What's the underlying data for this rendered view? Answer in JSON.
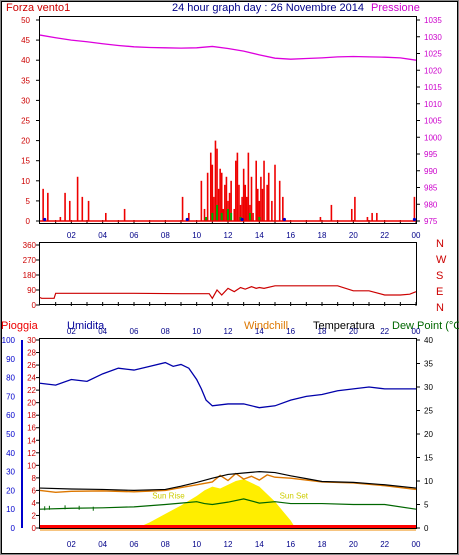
{
  "header": {
    "left_label": "Forza vento1",
    "title": "24 hour graph day : 26 Novembre 2014",
    "right_label": "Pressione"
  },
  "colors": {
    "wind": "#ee0000",
    "pressure": "#dd00dd",
    "time_labels": "#000088",
    "direction": "#cc0000",
    "rain": "#ff0000",
    "humidity": "#0000aa",
    "windchill": "#dd7700",
    "temperature": "#000000",
    "dewpoint": "#006600",
    "solar": "#ffee00",
    "sun_label": "#cccc00"
  },
  "chart_data": [
    {
      "name": "wind-pressure",
      "type": "line",
      "x_ticks": [
        "02",
        "04",
        "06",
        "08",
        "10",
        "12",
        "14",
        "16",
        "18",
        "20",
        "22",
        "00"
      ],
      "left_axis": {
        "label": "Forza vento1",
        "ticks": [
          "0",
          "5",
          "10",
          "15",
          "20",
          "25",
          "30",
          "35",
          "40",
          "45",
          "50"
        ],
        "ylim": [
          0,
          50
        ]
      },
      "right_axis": {
        "label": "Pressione",
        "ticks": [
          "975",
          "980",
          "985",
          "990",
          "995",
          "1000",
          "1005",
          "1010",
          "1015",
          "1020",
          "1025",
          "1030",
          "1035"
        ],
        "ylim": [
          975,
          1035
        ]
      },
      "pressure": {
        "hours": [
          0,
          1,
          2,
          3,
          4,
          5,
          6,
          7,
          8,
          9,
          10,
          11,
          12,
          13,
          14,
          15,
          16,
          17,
          18,
          19,
          20,
          21,
          22,
          23,
          24
        ],
        "values": [
          1030.5,
          1029.7,
          1029,
          1028.5,
          1027.9,
          1027.4,
          1027,
          1026.8,
          1026.7,
          1026.6,
          1026.7,
          1027.1,
          1026.5,
          1025.7,
          1024.6,
          1023.6,
          1023.3,
          1023.5,
          1023.7,
          1024,
          1024.1,
          1024,
          1023.9,
          1023.7,
          1023
        ]
      },
      "wind_gust_bars": {
        "hours": [
          0.2,
          0.5,
          1.3,
          1.6,
          1.9,
          2.4,
          2.7,
          3.1,
          4.2,
          5.4,
          9.1,
          9.5,
          10.3,
          10.5,
          10.7,
          10.9,
          11.0,
          11.1,
          11.2,
          11.3,
          11.4,
          11.5,
          11.6,
          11.7,
          11.8,
          11.9,
          12.0,
          12.1,
          12.2,
          12.4,
          12.5,
          12.6,
          12.7,
          12.8,
          12.9,
          13.0,
          13.1,
          13.2,
          13.3,
          13.4,
          13.5,
          13.6,
          13.8,
          13.9,
          14.0,
          14.1,
          14.2,
          14.3,
          14.5,
          14.6,
          14.8,
          15.0,
          15.3,
          15.5,
          17.9,
          18.6,
          19.9,
          20.1,
          20.9,
          21.2,
          21.5,
          23.9
        ],
        "values": [
          8,
          7,
          1,
          7,
          5,
          11,
          6,
          5,
          2,
          3,
          6,
          2,
          10,
          3,
          12,
          17,
          14,
          6,
          20,
          18,
          8,
          13,
          12,
          3,
          9,
          11,
          5,
          7,
          10,
          3,
          15,
          17,
          9,
          4,
          6,
          13,
          9,
          6,
          17,
          4,
          11,
          2,
          15,
          8,
          5,
          11,
          8,
          15,
          9,
          12,
          5,
          14,
          10,
          6,
          1,
          4,
          3,
          6,
          1,
          2,
          2,
          6
        ]
      },
      "wind_avg_bars": {
        "hours": [
          10.6,
          11.0,
          11.3,
          11.6,
          12.0,
          12.2,
          12.8,
          13.4,
          14.0
        ],
        "values": [
          1,
          2,
          4,
          2,
          3,
          2,
          1,
          2,
          1
        ]
      }
    },
    {
      "name": "wind-direction",
      "type": "line",
      "y_ticks": [
        "360",
        "270",
        "180",
        "90",
        "0"
      ],
      "ylim": [
        0,
        360
      ],
      "direction_labels": [
        "N",
        "W",
        "S",
        "E",
        "N"
      ],
      "hours": [
        0,
        0.1,
        0.9,
        1.0,
        3.0,
        6.0,
        9.0,
        10.8,
        11.0,
        11.3,
        11.6,
        12.0,
        12.4,
        12.8,
        13.1,
        13.5,
        13.8,
        14.0,
        14.3,
        15.0,
        16.0,
        19.0,
        20.0,
        21.0,
        22.0,
        23.0,
        23.6,
        24.0
      ],
      "values": [
        45,
        40,
        40,
        70,
        70,
        70,
        68,
        68,
        40,
        90,
        60,
        100,
        80,
        105,
        95,
        110,
        100,
        105,
        100,
        115,
        115,
        115,
        85,
        85,
        60,
        60,
        65,
        80
      ]
    },
    {
      "name": "humidity-temperature",
      "type": "line",
      "humidity_axis": {
        "ticks": [
          "0",
          "10",
          "20",
          "30",
          "40",
          "50",
          "60",
          "70",
          "80",
          "90",
          "100"
        ],
        "ylim": [
          0,
          100
        ]
      },
      "rain_axis": {
        "label": "Pioggia",
        "ticks": [
          "0",
          "2",
          "4",
          "6",
          "8",
          "10",
          "12",
          "14",
          "16",
          "18",
          "20",
          "22",
          "24",
          "26",
          "28",
          "30"
        ],
        "ylim": [
          0,
          30
        ]
      },
      "temperature_axis": {
        "ticks": [
          "0",
          "5",
          "10",
          "15",
          "20",
          "25",
          "30",
          "35",
          "40"
        ],
        "ylim": [
          0,
          40
        ]
      },
      "series_names": {
        "humidity": "Umidita",
        "windchill": "Windchill",
        "temperature": "Temperatura",
        "dewpoint": "Dew Point (°C"
      },
      "sun_events": [
        "Sun Rise",
        "Sun Set"
      ],
      "humidity": {
        "hours": [
          0,
          1,
          2,
          3,
          4,
          5,
          6,
          7,
          8,
          8.5,
          9,
          9.5,
          10,
          10.3,
          10.6,
          11,
          12,
          13,
          14,
          15,
          16,
          17,
          18,
          19,
          20,
          21,
          22,
          23,
          24
        ],
        "values": [
          77,
          76,
          79,
          78,
          82,
          85,
          84,
          86,
          88,
          86,
          87,
          85,
          79,
          74,
          68,
          65,
          66,
          66,
          64,
          65,
          68,
          70,
          71,
          73,
          74,
          75,
          74,
          74,
          74
        ]
      },
      "temperature": {
        "hours": [
          0,
          2,
          4,
          6,
          8,
          9,
          10,
          11,
          12,
          13,
          14,
          15,
          16,
          17,
          18,
          20,
          22,
          24
        ],
        "values": [
          8.5,
          8.3,
          8.2,
          8.0,
          8.2,
          8.9,
          9.7,
          10.6,
          11.4,
          11.7,
          12.0,
          11.8,
          11.1,
          10.5,
          9.9,
          9.7,
          9.2,
          8.5
        ]
      },
      "windchill": {
        "hours": [
          0,
          1,
          2,
          4,
          6,
          8,
          9,
          10,
          11,
          11.5,
          12,
          12.5,
          13,
          13.5,
          14,
          14.5,
          15,
          16,
          18,
          20,
          22,
          24
        ],
        "values": [
          8.0,
          7.6,
          7.8,
          7.9,
          7.7,
          8.0,
          8.6,
          9.2,
          9.8,
          11.2,
          10.1,
          11.6,
          10.4,
          11.0,
          10.2,
          11.3,
          10.8,
          10.6,
          9.8,
          9.6,
          9.0,
          8.2
        ]
      },
      "dewpoint": {
        "hours": [
          0,
          2,
          4,
          6,
          8,
          9,
          10,
          10.5,
          11,
          12,
          13,
          14,
          15,
          16,
          18,
          20,
          22,
          24
        ],
        "values": [
          4.0,
          4.2,
          4.3,
          4.5,
          5.0,
          5.3,
          5.6,
          5.2,
          5.0,
          5.5,
          6.2,
          5.3,
          5.6,
          5.2,
          5.2,
          5.0,
          5.0,
          4.0
        ],
        "markers_hours": [
          0.3,
          0.6,
          1.6,
          2.5,
          3.4
        ],
        "markers_values": [
          4.2,
          4.3,
          4.4,
          4.3,
          4.1
        ]
      },
      "solar_radiation": {
        "hours": [
          6.2,
          7,
          8,
          9,
          10,
          10.5,
          11,
          11.5,
          12,
          12.5,
          13,
          13.5,
          14,
          14.5,
          15,
          15.5,
          16,
          16.3
        ],
        "values": [
          0,
          1.2,
          3.0,
          4.8,
          6.8,
          8.0,
          8.8,
          8.4,
          9.2,
          10.0,
          10.4,
          9.6,
          8.8,
          7.2,
          5.6,
          3.6,
          1.6,
          0
        ]
      },
      "rain": {
        "hours": [
          0,
          24
        ],
        "values": [
          0,
          0
        ]
      }
    }
  ]
}
